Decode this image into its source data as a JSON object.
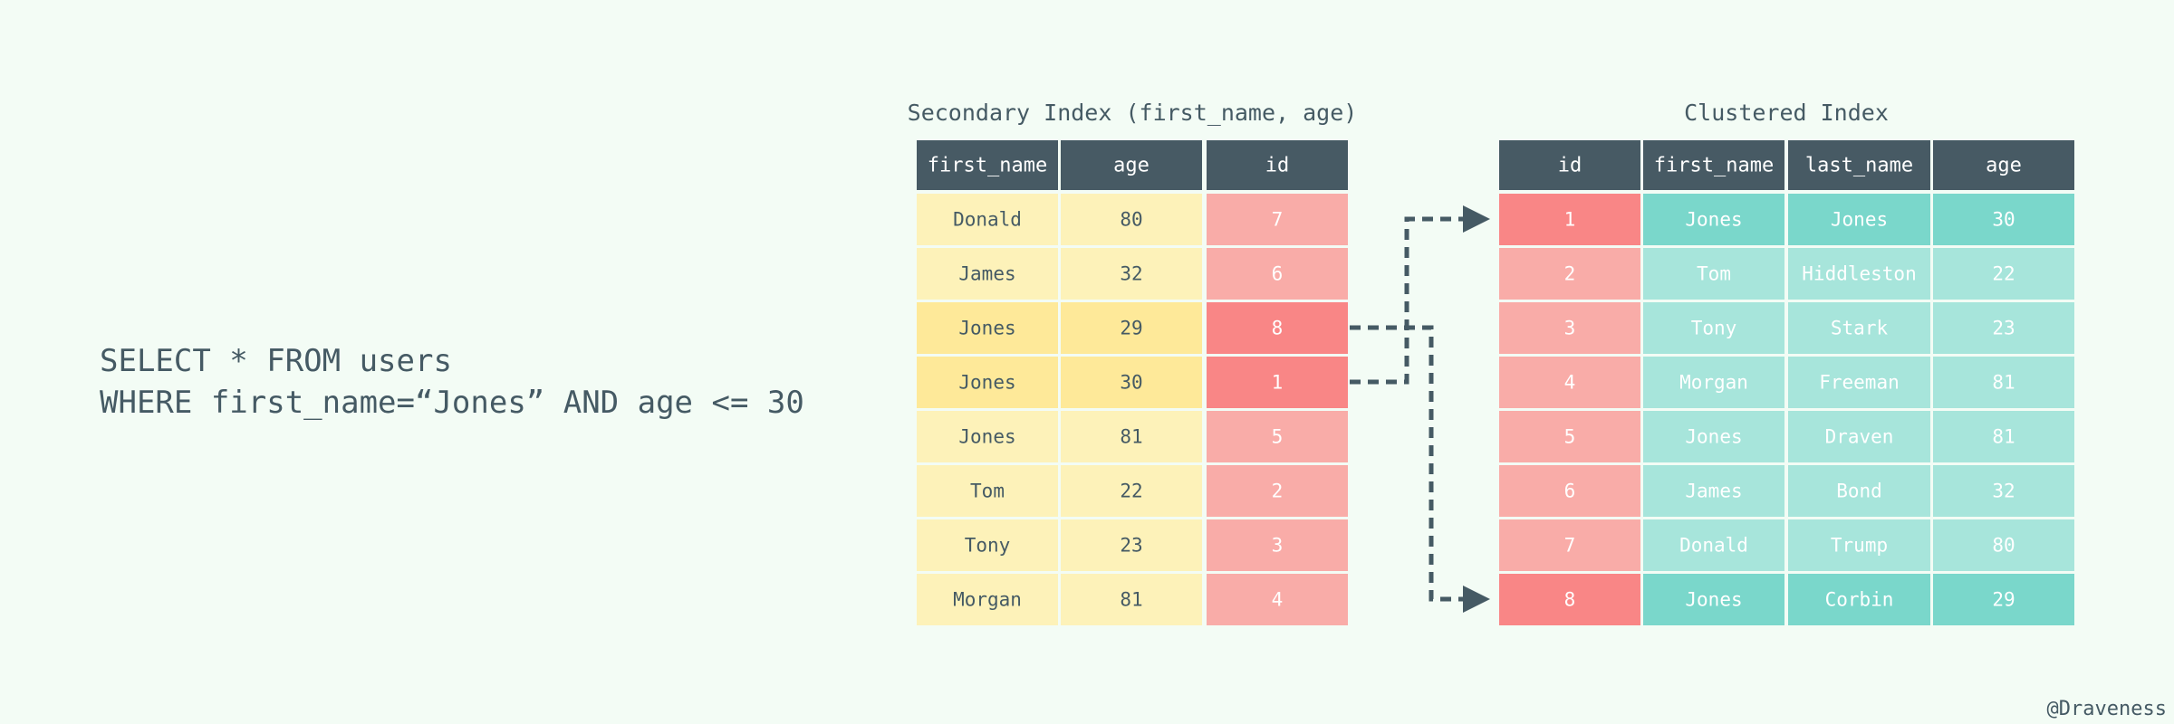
{
  "sql": [
    "SELECT * FROM users",
    "WHERE first_name=“Jones” AND age <= 30"
  ],
  "secondary_index": {
    "title": "Secondary Index (first_name, age)",
    "columns": [
      "first_name",
      "age",
      "id"
    ],
    "rows": [
      [
        "Donald",
        80,
        7
      ],
      [
        "James",
        32,
        6
      ],
      [
        "Jones",
        29,
        8
      ],
      [
        "Jones",
        30,
        1
      ],
      [
        "Jones",
        81,
        5
      ],
      [
        "Tom",
        22,
        2
      ],
      [
        "Tony",
        23,
        3
      ],
      [
        "Morgan",
        81,
        4
      ]
    ]
  },
  "clustered_index": {
    "title": "Clustered Index",
    "columns": [
      "id",
      "first_name",
      "last_name",
      "age"
    ],
    "rows": [
      [
        1,
        "Jones",
        "Jones",
        30
      ],
      [
        2,
        "Tom",
        "Hiddleston",
        22
      ],
      [
        3,
        "Tony",
        "Stark",
        23
      ],
      [
        4,
        "Morgan",
        "Freeman",
        81
      ],
      [
        5,
        "Jones",
        "Draven",
        81
      ],
      [
        6,
        "James",
        "Bond",
        32
      ],
      [
        7,
        "Donald",
        "Trump",
        80
      ],
      [
        8,
        "Jones",
        "Corbin",
        29
      ]
    ]
  },
  "watermark": "@Draveness"
}
